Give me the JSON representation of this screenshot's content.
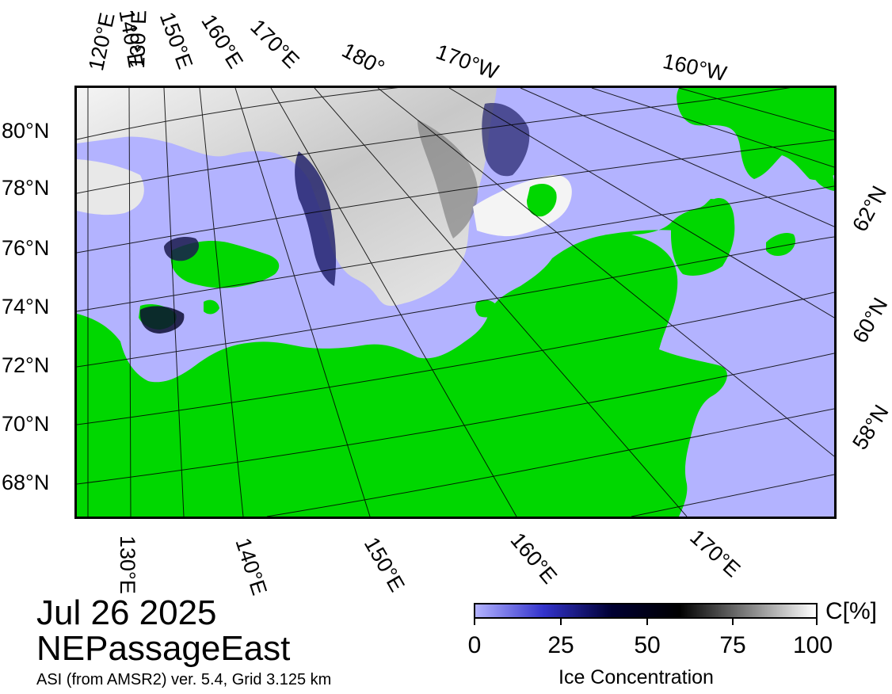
{
  "map": {
    "colors": {
      "ocean": "#b3b3ff",
      "land": "#00d700",
      "ice_high": "#f2f2f2",
      "ice_mid": "#8a8a8a",
      "ice_low": "#2b2b80",
      "graticule": "#000000"
    },
    "top_longitude_labels": [
      "120°E",
      "130°E",
      "140°E",
      "150°E",
      "160°E",
      "170°E",
      "180°",
      "170°W",
      "160°W"
    ],
    "left_latitude_labels": [
      "80°N",
      "78°N",
      "76°N",
      "74°N",
      "72°N",
      "70°N",
      "68°N"
    ],
    "right_latitude_labels": [
      "62°N",
      "60°N",
      "58°N"
    ],
    "bottom_longitude_labels": [
      "130°E",
      "140°E",
      "150°E",
      "160°E",
      "170°E"
    ]
  },
  "title": {
    "date": "Jul 26 2025",
    "region": "NEPassageEast",
    "source": "ASI (from AMSR2) ver. 5.4,  Grid 3.125 km"
  },
  "colorbar": {
    "unit": "C[%]",
    "ticks": [
      "0",
      "25",
      "50",
      "75",
      "100"
    ],
    "label": "Ice Concentration",
    "stops": [
      "#b3b3ff",
      "#3333cc",
      "#000033",
      "#000000",
      "#808080",
      "#ffffff"
    ]
  }
}
